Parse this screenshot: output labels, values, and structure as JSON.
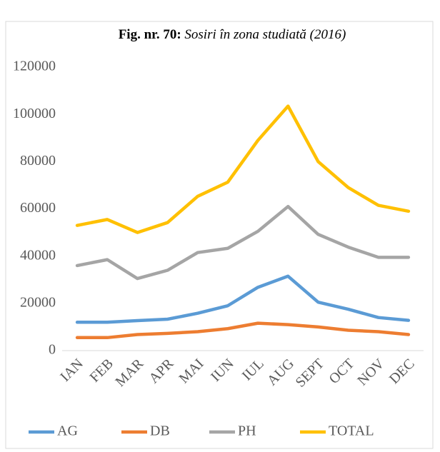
{
  "chart_data": {
    "type": "line",
    "title": "Fig. nr. 70:",
    "subtitle": "Sosiri în zona studiată (2016)",
    "categories": [
      "IAN",
      "FEB",
      "MAR",
      "APR",
      "MAI",
      "IUN",
      "IUL",
      "AUG",
      "SEPT",
      "OCT",
      "NOV",
      "DEC"
    ],
    "series": [
      {
        "name": "AG",
        "color": "#5b9bd5",
        "values": [
          12000,
          12000,
          12700,
          13300,
          15800,
          19000,
          26800,
          31500,
          20500,
          17500,
          14000,
          12800
        ]
      },
      {
        "name": "DB",
        "color": "#ed7d31",
        "values": [
          5500,
          5500,
          6800,
          7300,
          8000,
          9300,
          11600,
          11000,
          10000,
          8600,
          8000,
          6800
        ]
      },
      {
        "name": "PH",
        "color": "#a5a5a5",
        "values": [
          36000,
          38500,
          30500,
          34000,
          41500,
          43300,
          50500,
          61000,
          49200,
          43800,
          39500,
          39500
        ]
      },
      {
        "name": "TOTAL",
        "color": "#ffc000",
        "values": [
          53000,
          55500,
          50000,
          54200,
          65300,
          71300,
          89000,
          103500,
          80000,
          69000,
          61500,
          59000
        ]
      }
    ],
    "ylim": [
      0,
      120000
    ],
    "yticks": [
      0,
      20000,
      40000,
      60000,
      80000,
      100000,
      120000
    ],
    "grid": false,
    "legend": "bottom"
  }
}
